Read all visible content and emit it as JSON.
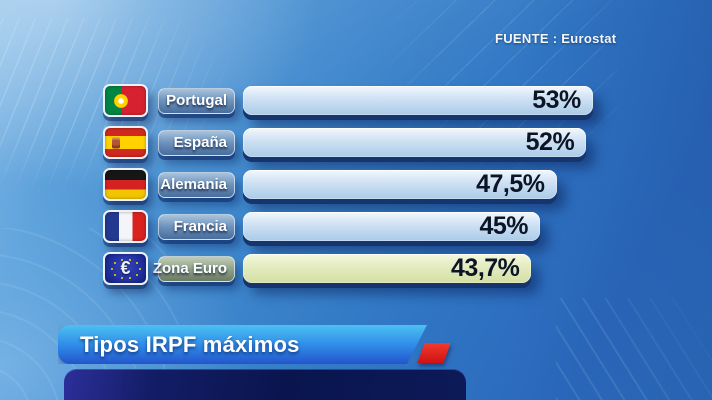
{
  "source": {
    "label": "FUENTE : Eurostat"
  },
  "banner": {
    "title": "Tipos IRPF máximos"
  },
  "icons": {
    "euro_symbol": "€"
  },
  "chart_data": {
    "type": "bar",
    "orientation": "horizontal",
    "title": "Tipos IRPF máximos",
    "source": "FUENTE : Eurostat",
    "categories": [
      "Portugal",
      "España",
      "Alemania",
      "Francia",
      "Zona Euro"
    ],
    "values": [
      53,
      52,
      47.5,
      45,
      43.7
    ],
    "value_labels": [
      "53%",
      "52%",
      "47,5%",
      "45%",
      "43,7%"
    ],
    "xlim": [
      0,
      53
    ],
    "grid": false,
    "legend": false,
    "highlighted_category": "Zona Euro",
    "colors": {
      "bar_default": "#c3dcf2",
      "bar_highlight": "#e0e9b8",
      "label_pill_default": "#6e93bd",
      "label_pill_highlight": "#93a48b",
      "value_text": "#0c1526",
      "background_blue": "#3b82ca",
      "banner_top": "#4cc0f2",
      "banner_bottom": "#2355cc",
      "red_accent": "#d91717",
      "lower_panel": "#0a154e"
    }
  },
  "rows": [
    {
      "flag": "portugal",
      "label": "Portugal",
      "value": 53,
      "value_label": "53%"
    },
    {
      "flag": "spain",
      "label": "España",
      "value": 52,
      "value_label": "52%"
    },
    {
      "flag": "germany",
      "label": "Alemania",
      "value": 47.5,
      "value_label": "47,5%"
    },
    {
      "flag": "france",
      "label": "Francia",
      "value": 45,
      "value_label": "45%"
    },
    {
      "flag": "eurozone",
      "label": "Zona Euro",
      "value": 43.7,
      "value_label": "43,7%"
    }
  ]
}
